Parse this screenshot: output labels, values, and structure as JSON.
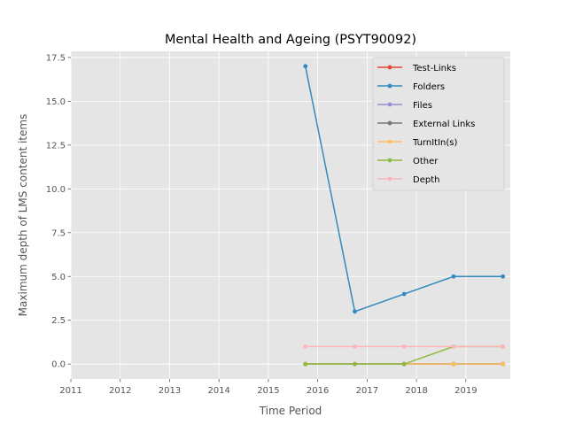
{
  "chart_data": {
    "type": "line",
    "title": "Mental Health and Ageing (PSYT90092)",
    "xlabel": "Time Period",
    "ylabel": "Maximum depth of LMS content items",
    "xlim": [
      2011,
      2019.9
    ],
    "ylim": [
      -0.85,
      17.85
    ],
    "x_ticks": [
      2011,
      2012,
      2013,
      2014,
      2015,
      2016,
      2017,
      2018,
      2019
    ],
    "y_ticks": [
      0,
      2.5,
      5,
      7.5,
      10,
      12.5,
      15,
      17.5
    ],
    "y_tick_labels": [
      "0.0",
      "2.5",
      "5.0",
      "7.5",
      "10.0",
      "12.5",
      "15.0",
      "17.5"
    ],
    "x": [
      2015.75,
      2016.75,
      2017.75,
      2018.75,
      2019.75
    ],
    "grid": true,
    "legend_position": "upper right",
    "series": [
      {
        "name": "Test-Links",
        "color": "#E24A33",
        "values": [
          0,
          0,
          0,
          0,
          0
        ]
      },
      {
        "name": "Folders",
        "color": "#348ABD",
        "values": [
          17,
          3,
          4,
          5,
          5
        ]
      },
      {
        "name": "Files",
        "color": "#988ED5",
        "values": [
          0,
          0,
          0,
          0,
          0
        ]
      },
      {
        "name": "External Links",
        "color": "#777777",
        "values": [
          0,
          0,
          0,
          0,
          0
        ]
      },
      {
        "name": "TurnItIn(s)",
        "color": "#FBC15E",
        "values": [
          0,
          0,
          0,
          0,
          0
        ]
      },
      {
        "name": "Other",
        "color": "#8EBA42",
        "values": [
          0,
          0,
          0,
          1,
          1
        ]
      },
      {
        "name": "Depth",
        "color": "#FFB5B8",
        "values": [
          1,
          1,
          1,
          1,
          1
        ]
      }
    ]
  }
}
